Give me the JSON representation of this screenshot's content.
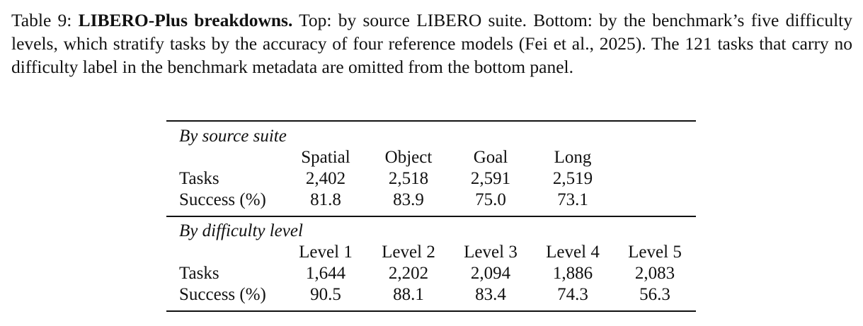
{
  "caption": {
    "label": "Table 9:",
    "title": "LIBERO-Plus breakdowns.",
    "text": "Top: by source LIBERO suite. Bottom: by the benchmark’s five difficulty levels, which stratify tasks by the accuracy of four reference models (Fei et al., 2025). The 121 tasks that carry no difficulty label in the benchmark metadata are omitted from the bottom panel."
  },
  "table": {
    "panels": [
      {
        "title": "By source suite",
        "columns": [
          "Spatial",
          "Object",
          "Goal",
          "Long"
        ],
        "rows": [
          {
            "label": "Tasks",
            "cells": [
              "2,402",
              "2,518",
              "2,591",
              "2,519"
            ]
          },
          {
            "label": "Success (%)",
            "cells": [
              "81.8",
              "83.9",
              "75.0",
              "73.1"
            ]
          }
        ]
      },
      {
        "title": "By difficulty level",
        "columns": [
          "Level 1",
          "Level 2",
          "Level 3",
          "Level 4",
          "Level 5"
        ],
        "rows": [
          {
            "label": "Tasks",
            "cells": [
              "1,644",
              "2,202",
              "2,094",
              "1,886",
              "2,083"
            ]
          },
          {
            "label": "Success (%)",
            "cells": [
              "90.5",
              "88.1",
              "83.4",
              "74.3",
              "56.3"
            ]
          }
        ]
      }
    ]
  }
}
